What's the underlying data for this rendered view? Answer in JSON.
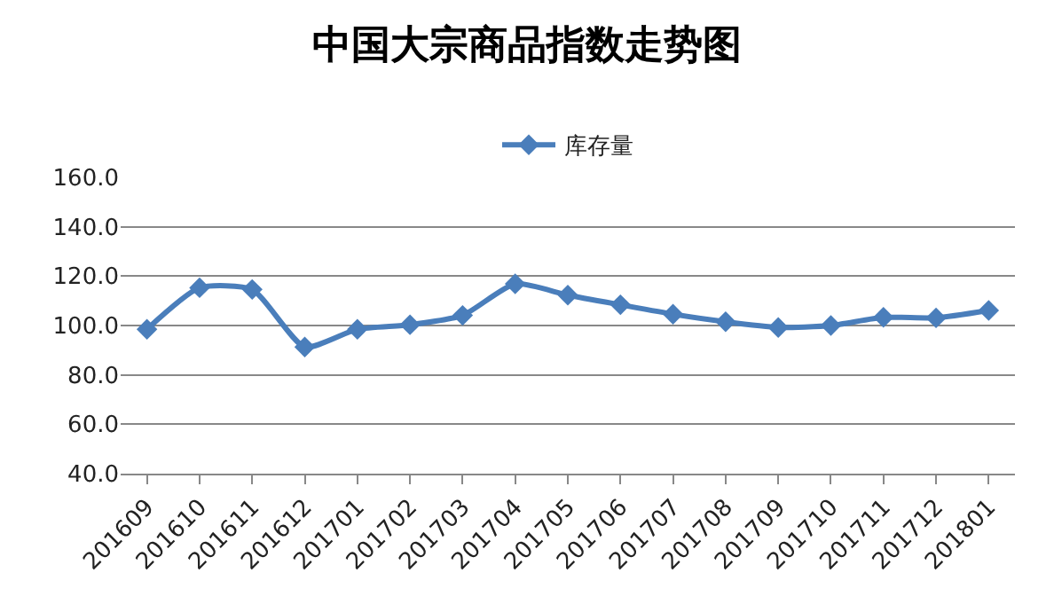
{
  "chart_data": {
    "type": "line",
    "title": "中国大宗商品指数走势图",
    "categories": [
      "201609",
      "201610",
      "201611",
      "201612",
      "201701",
      "201702",
      "201703",
      "201704",
      "201705",
      "201706",
      "201707",
      "201708",
      "201709",
      "201710",
      "201711",
      "201712",
      "201801"
    ],
    "series": [
      {
        "name": "库存量",
        "color": "#4a7ebb",
        "values": [
          98.5,
          115.3,
          114.6,
          91.3,
          98.5,
          100.3,
          104.1,
          116.9,
          112.3,
          108.4,
          104.6,
          101.5,
          99.2,
          100.0,
          103.3,
          103.1,
          106.1
        ]
      }
    ],
    "ylim": [
      40,
      160
    ],
    "yticks": [
      {
        "value": 40,
        "label": "40.0"
      },
      {
        "value": 60,
        "label": "60.0"
      },
      {
        "value": 80,
        "label": "80.0"
      },
      {
        "value": 100,
        "label": "100.0"
      },
      {
        "value": 120,
        "label": "120.0"
      },
      {
        "value": 140,
        "label": "140.0"
      },
      {
        "value": 160,
        "label": "160.0"
      }
    ],
    "grid": "y",
    "legend": "top",
    "marker": "diamond",
    "line_style": "solid"
  }
}
